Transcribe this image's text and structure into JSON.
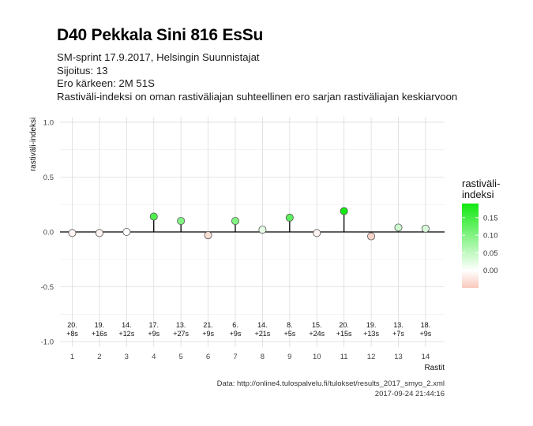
{
  "chart_data": {
    "type": "scatter",
    "title": "D40 Pekkala Sini 816 EsSu",
    "subtitle_lines": [
      "SM-sprint 17.9.2017, Helsingin Suunnistajat",
      "Sijoitus: 13",
      "Ero kärkeen: 2M 51S",
      "Rastiväli-indeksi on oman rastiväliajan suhteellinen ero sarjan rastiväliajan keskiarvoon"
    ],
    "xlabel": "Rastit",
    "ylabel": "rastiväli-indeksi",
    "xlim": [
      0.55,
      14.7
    ],
    "ylim": [
      -1.05,
      1.05
    ],
    "y_ticks": [
      -1.0,
      -0.5,
      0.0,
      0.5,
      1.0
    ],
    "y_tick_labels": [
      "-1.0",
      "-0.5",
      "0.0",
      "0.5",
      "1.0"
    ],
    "x": [
      1,
      2,
      3,
      4,
      5,
      6,
      7,
      8,
      9,
      10,
      11,
      12,
      13,
      14
    ],
    "x_tick_labels": [
      "1",
      "2",
      "3",
      "4",
      "5",
      "6",
      "7",
      "8",
      "9",
      "10",
      "11",
      "12",
      "13",
      "14"
    ],
    "values": [
      -0.01,
      -0.01,
      0.0,
      0.14,
      0.1,
      -0.03,
      0.1,
      0.02,
      0.13,
      -0.01,
      0.19,
      -0.04,
      0.04,
      0.03
    ],
    "annotation_ranks": [
      "20.",
      "19.",
      "14.",
      "17.",
      "13.",
      "21.",
      "6.",
      "14.",
      "8.",
      "15.",
      "20.",
      "19.",
      "13.",
      "18."
    ],
    "annotation_diffs": [
      "+8s",
      "+16s",
      "+12s",
      "+9s",
      "+27s",
      "+9s",
      "+9s",
      "+21s",
      "+5s",
      "+24s",
      "+15s",
      "+13s",
      "+7s",
      "+9s"
    ],
    "grid": true,
    "legend": {
      "title_lines": [
        "rastiväli-",
        "indeksi"
      ],
      "placement": "right",
      "range": [
        -0.05,
        0.19
      ],
      "ticks": [
        0.0,
        0.05,
        0.1,
        0.15
      ],
      "tick_labels": [
        "0.00",
        "0.05",
        "0.10",
        "0.15"
      ],
      "colors": {
        "low": "#f8c9bd",
        "mid": "#ffffff",
        "high": "#12e812"
      }
    },
    "caption_lines": [
      "Data: http://online4.tulospalvelu.fi/tulokset/results_2017_smyo_2.xml",
      "2017-09-24 21:44:16"
    ]
  }
}
